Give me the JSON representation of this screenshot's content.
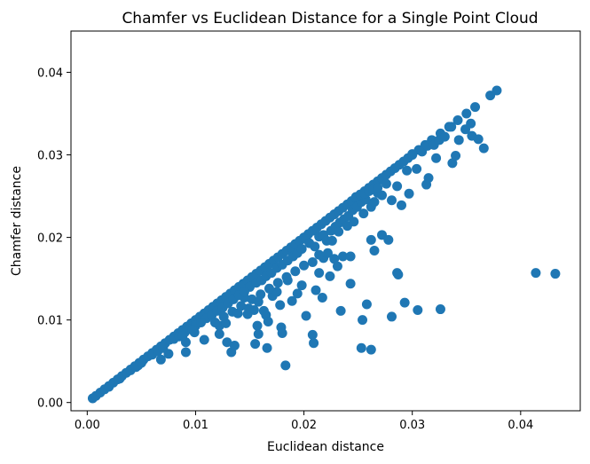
{
  "chart_data": {
    "type": "scatter",
    "title": "Chamfer vs Euclidean Distance for a Single Point Cloud",
    "xlabel": "Euclidean distance",
    "ylabel": "Chamfer distance",
    "xlim": [
      -0.0015,
      0.0455
    ],
    "ylim": [
      -0.001,
      0.045
    ],
    "xticks": [
      0.0,
      0.01,
      0.02,
      0.03,
      0.04
    ],
    "xtick_labels": [
      "0.00",
      "0.01",
      "0.02",
      "0.03",
      "0.04"
    ],
    "yticks": [
      0.0,
      0.01,
      0.02,
      0.03,
      0.04
    ],
    "ytick_labels": [
      "0.00",
      "0.01",
      "0.02",
      "0.03",
      "0.04"
    ],
    "grid": false,
    "marker_color": "#1f77b4",
    "series": [
      {
        "diagonal_points": [
          [
            0.0005,
            0.0005
          ],
          [
            0.0008,
            0.0008
          ],
          [
            0.0012,
            0.0012
          ],
          [
            0.0016,
            0.0016
          ],
          [
            0.002,
            0.002
          ],
          [
            0.0024,
            0.0024
          ],
          [
            0.0028,
            0.0028
          ],
          [
            0.0032,
            0.0032
          ],
          [
            0.0036,
            0.0036
          ],
          [
            0.004,
            0.004
          ],
          [
            0.0044,
            0.0044
          ],
          [
            0.0048,
            0.0048
          ],
          [
            0.0052,
            0.0052
          ],
          [
            0.0056,
            0.0056
          ],
          [
            0.006,
            0.006
          ],
          [
            0.0064,
            0.0064
          ],
          [
            0.0068,
            0.0068
          ],
          [
            0.0072,
            0.0072
          ],
          [
            0.0076,
            0.0076
          ],
          [
            0.008,
            0.008
          ],
          [
            0.0084,
            0.0084
          ],
          [
            0.0088,
            0.0088
          ],
          [
            0.0092,
            0.0092
          ],
          [
            0.0096,
            0.0096
          ],
          [
            0.01,
            0.01
          ],
          [
            0.0104,
            0.0104
          ],
          [
            0.0108,
            0.0108
          ],
          [
            0.0112,
            0.0112
          ],
          [
            0.0116,
            0.0116
          ],
          [
            0.012,
            0.012
          ],
          [
            0.0124,
            0.0124
          ],
          [
            0.0128,
            0.0128
          ],
          [
            0.0132,
            0.0132
          ],
          [
            0.0136,
            0.0136
          ],
          [
            0.014,
            0.014
          ],
          [
            0.0144,
            0.0144
          ],
          [
            0.0148,
            0.0148
          ],
          [
            0.0152,
            0.0152
          ],
          [
            0.0156,
            0.0156
          ],
          [
            0.016,
            0.016
          ],
          [
            0.0164,
            0.0164
          ],
          [
            0.0168,
            0.0168
          ],
          [
            0.0172,
            0.0172
          ],
          [
            0.0176,
            0.0176
          ],
          [
            0.018,
            0.018
          ],
          [
            0.0184,
            0.0184
          ],
          [
            0.0188,
            0.0188
          ],
          [
            0.0192,
            0.0192
          ],
          [
            0.0196,
            0.0196
          ],
          [
            0.02,
            0.02
          ],
          [
            0.0204,
            0.0204
          ],
          [
            0.0208,
            0.0208
          ],
          [
            0.0212,
            0.0212
          ],
          [
            0.0216,
            0.0216
          ],
          [
            0.022,
            0.022
          ],
          [
            0.0224,
            0.0224
          ],
          [
            0.0228,
            0.0228
          ],
          [
            0.0232,
            0.0232
          ],
          [
            0.0236,
            0.0236
          ],
          [
            0.024,
            0.024
          ],
          [
            0.0244,
            0.0244
          ],
          [
            0.0248,
            0.0248
          ],
          [
            0.0252,
            0.0252
          ],
          [
            0.0256,
            0.0256
          ],
          [
            0.026,
            0.026
          ],
          [
            0.0264,
            0.0264
          ],
          [
            0.0268,
            0.0268
          ],
          [
            0.0272,
            0.0272
          ],
          [
            0.0276,
            0.0276
          ],
          [
            0.028,
            0.028
          ],
          [
            0.0284,
            0.0284
          ],
          [
            0.0288,
            0.0288
          ],
          [
            0.0292,
            0.0292
          ],
          [
            0.0296,
            0.0296
          ],
          [
            0.03,
            0.03
          ],
          [
            0.0306,
            0.0306
          ],
          [
            0.0312,
            0.0312
          ],
          [
            0.0318,
            0.0318
          ],
          [
            0.0326,
            0.0326
          ],
          [
            0.0334,
            0.0334
          ],
          [
            0.0342,
            0.0342
          ],
          [
            0.035,
            0.035
          ],
          [
            0.0358,
            0.0358
          ],
          [
            0.0372,
            0.0372
          ],
          [
            0.0378,
            0.0378
          ]
        ],
        "scattered_points": [
          [
            0.0047,
            0.0045
          ],
          [
            0.0068,
            0.0052
          ],
          [
            0.0075,
            0.0059
          ],
          [
            0.0091,
            0.0061
          ],
          [
            0.0091,
            0.0073
          ],
          [
            0.0099,
            0.0085
          ],
          [
            0.0108,
            0.0076
          ],
          [
            0.0122,
            0.0093
          ],
          [
            0.0122,
            0.0083
          ],
          [
            0.0129,
            0.0073
          ],
          [
            0.0133,
            0.0061
          ],
          [
            0.0136,
            0.0069
          ],
          [
            0.0128,
            0.0096
          ],
          [
            0.0148,
            0.0107
          ],
          [
            0.0154,
            0.0112
          ],
          [
            0.0155,
            0.0071
          ],
          [
            0.0157,
            0.0093
          ],
          [
            0.0158,
            0.0083
          ],
          [
            0.0165,
            0.0106
          ],
          [
            0.0166,
            0.0066
          ],
          [
            0.0167,
            0.0098
          ],
          [
            0.0171,
            0.0129
          ],
          [
            0.0175,
            0.0134
          ],
          [
            0.0178,
            0.0118
          ],
          [
            0.0179,
            0.0091
          ],
          [
            0.018,
            0.0084
          ],
          [
            0.0183,
            0.0045
          ],
          [
            0.0185,
            0.0148
          ],
          [
            0.0189,
            0.0123
          ],
          [
            0.0194,
            0.0132
          ],
          [
            0.0198,
            0.0142
          ],
          [
            0.0202,
            0.0105
          ],
          [
            0.0208,
            0.0082
          ],
          [
            0.0209,
            0.0072
          ],
          [
            0.0211,
            0.0136
          ],
          [
            0.0214,
            0.0157
          ],
          [
            0.0217,
            0.0127
          ],
          [
            0.0224,
            0.0153
          ],
          [
            0.0228,
            0.0174
          ],
          [
            0.0231,
            0.0165
          ],
          [
            0.0234,
            0.0111
          ],
          [
            0.0236,
            0.0177
          ],
          [
            0.0243,
            0.0177
          ],
          [
            0.0243,
            0.0144
          ],
          [
            0.0253,
            0.0066
          ],
          [
            0.0254,
            0.01
          ],
          [
            0.0258,
            0.0119
          ],
          [
            0.0262,
            0.0197
          ],
          [
            0.0262,
            0.0064
          ],
          [
            0.0265,
            0.0184
          ],
          [
            0.0272,
            0.0203
          ],
          [
            0.0278,
            0.0197
          ],
          [
            0.0281,
            0.0104
          ],
          [
            0.0286,
            0.0157
          ],
          [
            0.0287,
            0.0155
          ],
          [
            0.0293,
            0.0121
          ],
          [
            0.0297,
            0.0253
          ],
          [
            0.0305,
            0.0112
          ],
          [
            0.0313,
            0.0264
          ],
          [
            0.0315,
            0.0272
          ],
          [
            0.0322,
            0.0296
          ],
          [
            0.0326,
            0.0113
          ],
          [
            0.0337,
            0.029
          ],
          [
            0.034,
            0.0299
          ],
          [
            0.0355,
            0.0323
          ],
          [
            0.0361,
            0.0319
          ],
          [
            0.0366,
            0.0308
          ],
          [
            0.0414,
            0.0157
          ],
          [
            0.0432,
            0.0156
          ],
          [
            0.0262,
            0.0237
          ],
          [
            0.0265,
            0.0243
          ],
          [
            0.0268,
            0.0254
          ],
          [
            0.0272,
            0.0251
          ],
          [
            0.0276,
            0.0265
          ],
          [
            0.0281,
            0.0245
          ],
          [
            0.0286,
            0.0262
          ],
          [
            0.029,
            0.0239
          ],
          [
            0.0295,
            0.0281
          ],
          [
            0.03,
            0.0301
          ],
          [
            0.0304,
            0.0283
          ],
          [
            0.0309,
            0.0304
          ],
          [
            0.0314,
            0.0311
          ],
          [
            0.032,
            0.0312
          ],
          [
            0.0325,
            0.0318
          ],
          [
            0.033,
            0.0322
          ],
          [
            0.0336,
            0.0334
          ],
          [
            0.0343,
            0.0318
          ],
          [
            0.0349,
            0.0331
          ],
          [
            0.0354,
            0.0338
          ],
          [
            0.0202,
            0.0198
          ],
          [
            0.0205,
            0.0193
          ],
          [
            0.021,
            0.0189
          ],
          [
            0.0214,
            0.0201
          ],
          [
            0.0218,
            0.0203
          ],
          [
            0.0221,
            0.0196
          ],
          [
            0.0225,
            0.0208
          ],
          [
            0.0229,
            0.0213
          ],
          [
            0.0233,
            0.0218
          ],
          [
            0.0237,
            0.0222
          ],
          [
            0.0241,
            0.0226
          ],
          [
            0.0245,
            0.0233
          ],
          [
            0.0249,
            0.0237
          ],
          [
            0.0253,
            0.0243
          ],
          [
            0.0257,
            0.0246
          ],
          [
            0.0218,
            0.0175
          ],
          [
            0.0222,
            0.0181
          ],
          [
            0.0226,
            0.0196
          ],
          [
            0.0232,
            0.0207
          ],
          [
            0.024,
            0.0214
          ],
          [
            0.0246,
            0.0219
          ],
          [
            0.0255,
            0.0229
          ],
          [
            0.0248,
            0.0249
          ],
          [
            0.0252,
            0.0252
          ],
          [
            0.0256,
            0.0253
          ],
          [
            0.026,
            0.0256
          ],
          [
            0.0264,
            0.0258
          ],
          [
            0.0268,
            0.026
          ],
          [
            0.015,
            0.014
          ],
          [
            0.0156,
            0.0145
          ],
          [
            0.0161,
            0.0148
          ],
          [
            0.0165,
            0.0153
          ],
          [
            0.017,
            0.0157
          ],
          [
            0.0175,
            0.0163
          ],
          [
            0.018,
            0.0167
          ],
          [
            0.0185,
            0.0172
          ],
          [
            0.019,
            0.0177
          ],
          [
            0.0194,
            0.0181
          ],
          [
            0.0198,
            0.0186
          ],
          [
            0.0145,
            0.0127
          ],
          [
            0.0152,
            0.0125
          ],
          [
            0.016,
            0.0131
          ],
          [
            0.0168,
            0.0138
          ],
          [
            0.0176,
            0.0145
          ],
          [
            0.0184,
            0.0152
          ],
          [
            0.0192,
            0.0159
          ],
          [
            0.02,
            0.0166
          ],
          [
            0.0208,
            0.017
          ],
          [
            0.0214,
            0.0179
          ],
          [
            0.011,
            0.0102
          ],
          [
            0.0115,
            0.0106
          ],
          [
            0.012,
            0.0111
          ],
          [
            0.0125,
            0.0115
          ],
          [
            0.013,
            0.012
          ],
          [
            0.0135,
            0.0125
          ],
          [
            0.014,
            0.013
          ],
          [
            0.0145,
            0.0134
          ],
          [
            0.0118,
            0.0097
          ],
          [
            0.0126,
            0.0104
          ],
          [
            0.0134,
            0.011
          ],
          [
            0.0142,
            0.0117
          ],
          [
            0.0139,
            0.0108
          ],
          [
            0.0149,
            0.0114
          ],
          [
            0.0158,
            0.0122
          ],
          [
            0.0163,
            0.0111
          ],
          [
            0.008,
            0.0077
          ],
          [
            0.0085,
            0.008
          ],
          [
            0.009,
            0.0085
          ],
          [
            0.0095,
            0.0089
          ],
          [
            0.01,
            0.0093
          ],
          [
            0.0105,
            0.0097
          ],
          [
            0.0088,
            0.0081
          ],
          [
            0.0097,
            0.0088
          ],
          [
            0.006,
            0.0058
          ],
          [
            0.0065,
            0.0062
          ],
          [
            0.007,
            0.0066
          ],
          [
            0.004,
            0.0039
          ],
          [
            0.0045,
            0.0043
          ],
          [
            0.005,
            0.0048
          ],
          [
            0.003,
            0.0029
          ],
          [
            0.002,
            0.0019
          ]
        ]
      }
    ]
  }
}
